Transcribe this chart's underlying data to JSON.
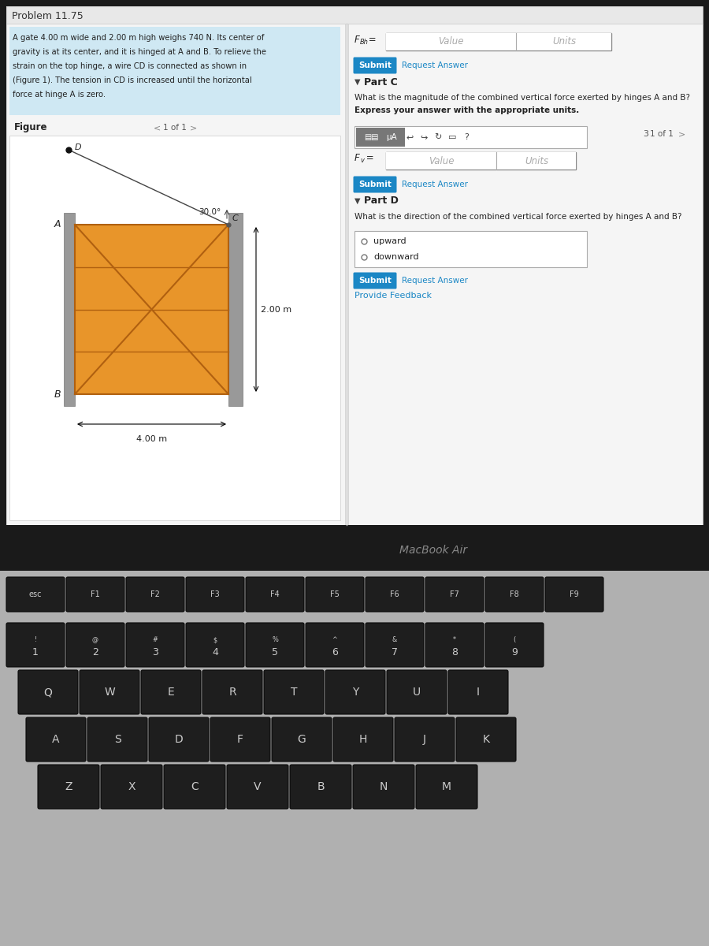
{
  "title": "Problem 11.75",
  "problem_text_lines": [
    "A gate 4.00 m wide and 2.00 m high weighs 740 N. Its center of",
    "gravity is at its center, and it is hinged at A and B. To relieve the",
    "strain on the top hinge, a wire CD is connected as shown in",
    "(Figure 1). The tension in CD is increased until the horizontal",
    "force at hinge A is zero."
  ],
  "value_placeholder": "Value",
  "units_placeholder": "Units",
  "submit_btn_color": "#1b87c5",
  "request_answer_color": "#1b87c5",
  "part_c_title": "Part C",
  "part_c_question": "What is the magnitude of the combined vertical force exerted by hinges A and B?",
  "part_c_subtext": "Express your answer with the appropriate units.",
  "part_d_title": "Part D",
  "part_d_question": "What is the direction of the combined vertical force exerted by hinges A and B?",
  "part_d_options": [
    "upward",
    "downward"
  ],
  "angle": "30.0°",
  "gate_width_label": "4.00 m",
  "gate_height_label": "2.00 m",
  "figure_label": "Figure",
  "page_nav": "1 of 1",
  "provide_feedback": "Provide Feedback",
  "macbook_text": "MacBook Air",
  "screen_bg": "#f0f0f0",
  "problem_bg": "#cfe8f3",
  "white": "#ffffff",
  "bezel_color": "#1a1a1a",
  "laptop_silver": "#a8a8a8",
  "key_dark": "#252525",
  "key_border": "#111111",
  "gate_color": "#e8952a",
  "gate_border": "#b06010",
  "figure_link_color": "#1b87c5",
  "title_bar_bg": "#e8e8e8",
  "divider_color": "#cccccc",
  "input_border": "#aaaaaa",
  "text_dark": "#222222",
  "text_gray": "#888888"
}
